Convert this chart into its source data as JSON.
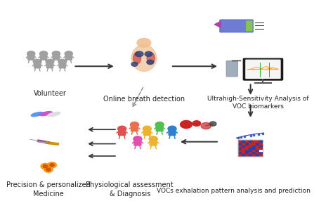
{
  "background_color": "#ffffff",
  "labels": {
    "volunteer": "Volunteer",
    "online_breath": "Online breath detection",
    "ultrahigh": "Ultrahigh-Sensitivity Analysis of\nVOC biomarkers",
    "vocs_exhale": "VOCs exhalation pattern analysis and prediction",
    "physiological": "Physiological assessment\n& Diagnosis",
    "precision": "Precision & personalized\nMedicine"
  },
  "font_size_label": 7,
  "text_color": "#222222"
}
